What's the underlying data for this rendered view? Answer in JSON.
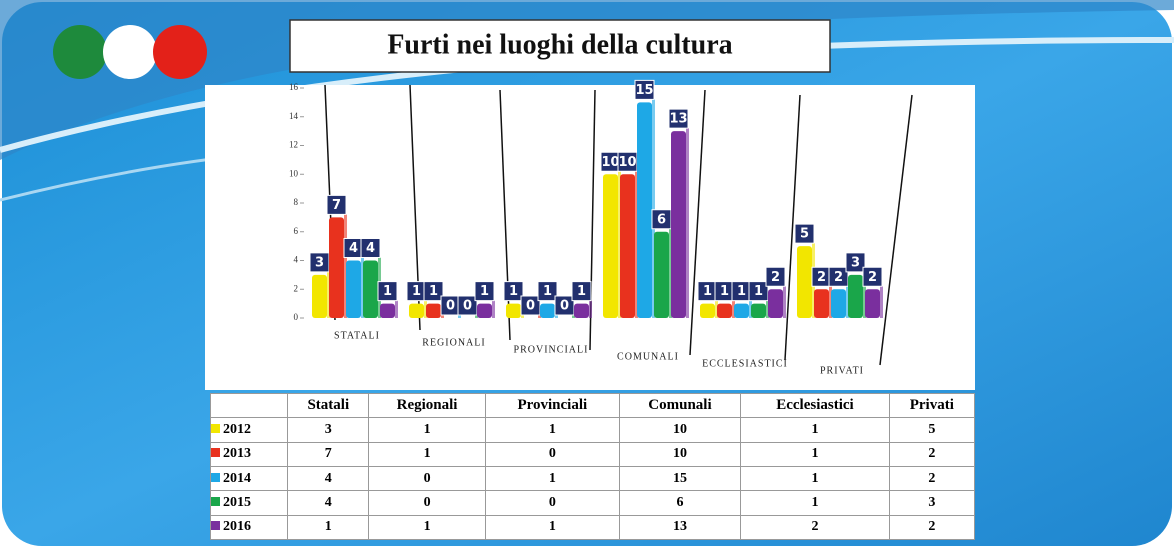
{
  "chart_data": {
    "type": "bar",
    "title": "Furti nei luoghi della cultura",
    "categories": [
      "STATALI",
      "REGIONALI",
      "PROVINCIALI",
      "COMUNALI",
      "ECCLESIASTICI",
      "PRIVATI"
    ],
    "series": [
      {
        "name": "2012",
        "color": "#f2e600",
        "values": [
          3,
          1,
          1,
          10,
          1,
          5
        ]
      },
      {
        "name": "2013",
        "color": "#e8321e",
        "values": [
          7,
          1,
          0,
          10,
          1,
          2
        ]
      },
      {
        "name": "2014",
        "color": "#1ea8e6",
        "values": [
          4,
          0,
          1,
          15,
          1,
          2
        ]
      },
      {
        "name": "2015",
        "color": "#1aa64a",
        "values": [
          4,
          0,
          0,
          6,
          1,
          3
        ]
      },
      {
        "name": "2016",
        "color": "#7a2f9e",
        "values": [
          1,
          1,
          1,
          13,
          2,
          2
        ]
      }
    ],
    "ylim": [
      0,
      16
    ],
    "yticks": [
      0,
      2,
      4,
      6,
      8,
      10,
      12,
      14,
      16
    ]
  },
  "table": {
    "columns": [
      "Statali",
      "Regionali",
      "Provinciali",
      "Comunali",
      "Ecclesiastici",
      "Privati"
    ]
  }
}
